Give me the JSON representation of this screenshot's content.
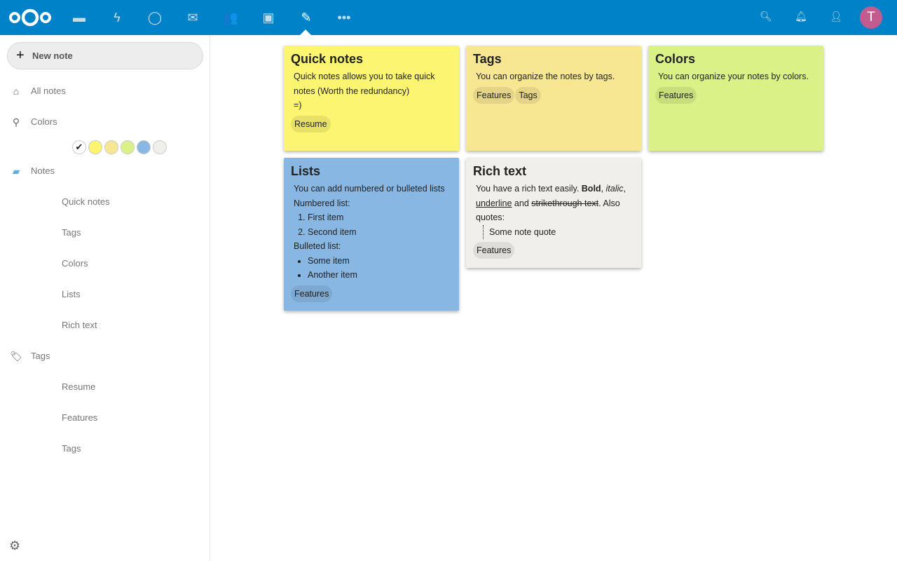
{
  "header": {
    "apps": [
      "files-icon",
      "activity-icon",
      "talk-icon",
      "mail-icon",
      "contacts-icon",
      "calendar-icon",
      "notes-icon",
      "more-icon"
    ],
    "active_app": "notes-icon",
    "avatar_letter": "T",
    "bg_color": "#0082c9"
  },
  "sidebar": {
    "new_note": "New note",
    "all_notes": "All notes",
    "colors": "Colors",
    "color_swatches": [
      "#ffffff",
      "#fbf571",
      "#f7e793",
      "#daf188",
      "#88b7e3",
      "#f1efec"
    ],
    "notes_label": "Notes",
    "notes": [
      "Quick notes",
      "Tags",
      "Colors",
      "Lists",
      "Rich text"
    ],
    "tags_label": "Tags",
    "tags": [
      "Resume",
      "Features",
      "Tags"
    ]
  },
  "cards": [
    {
      "title": "Quick notes",
      "color": "#fbf571",
      "text": [
        "Quick notes allows you to take quick notes (Worth the redundancy)",
        "=)"
      ],
      "tags": [
        "Resume"
      ]
    },
    {
      "title": "Tags",
      "color": "#f7e793",
      "text": [
        "You can organize the notes by tags."
      ],
      "tags": [
        "Features",
        "Tags"
      ]
    },
    {
      "title": "Colors",
      "color": "#daf188",
      "text": [
        "You can organize your notes by colors."
      ],
      "tags": [
        "Features"
      ]
    },
    {
      "title": "Lists",
      "color": "#88b7e3",
      "intro": "You can add numbered or bulleted lists",
      "numbered_label": "Numbered list:",
      "numbered": [
        "First item",
        "Second item"
      ],
      "bulleted_label": "Bulleted list:",
      "bulleted": [
        "Some item",
        "Another item"
      ],
      "tags": [
        "Features"
      ]
    },
    {
      "title": "Rich text",
      "color": "#f1efec",
      "parts": {
        "a": "You have a rich text easily. ",
        "bold": "Bold",
        "c1": ", ",
        "italic": "italic",
        "c2": ", ",
        "underline": "underline",
        "and": " and ",
        "strike": "strikethrough text",
        "also": ". Also quotes:"
      },
      "quote": "Some note quote",
      "tags": [
        "Features"
      ]
    }
  ]
}
